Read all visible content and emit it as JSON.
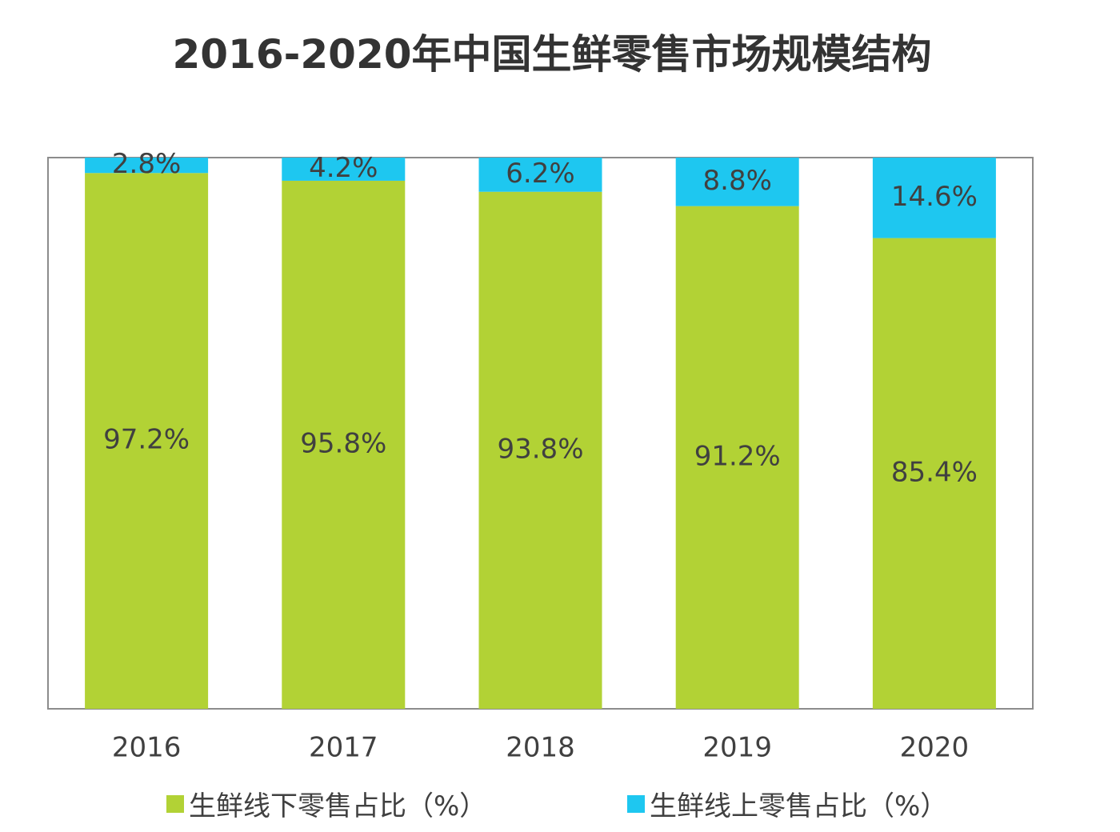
{
  "chart_data": {
    "type": "bar",
    "stacked": true,
    "title": "2016-2020年中国生鲜零售市场规模结构",
    "categories": [
      "2016",
      "2017",
      "2018",
      "2019",
      "2020"
    ],
    "series": [
      {
        "name": "生鲜线下零售占比（%）",
        "color": "#b2d235",
        "values": [
          97.2,
          95.8,
          93.8,
          91.2,
          85.4
        ],
        "labels": [
          "97.2%",
          "95.8%",
          "93.8%",
          "91.2%",
          "85.4%"
        ]
      },
      {
        "name": "生鲜线上零售占比（%）",
        "color": "#1ec7f0",
        "values": [
          2.8,
          4.2,
          6.2,
          8.8,
          14.6
        ],
        "labels": [
          "2.8%",
          "4.2%",
          "6.2%",
          "8.8%",
          "14.6%"
        ]
      }
    ],
    "ylim": [
      0,
      100
    ],
    "xlabel": "",
    "ylabel": "",
    "grid": false,
    "legend_position": "bottom"
  }
}
